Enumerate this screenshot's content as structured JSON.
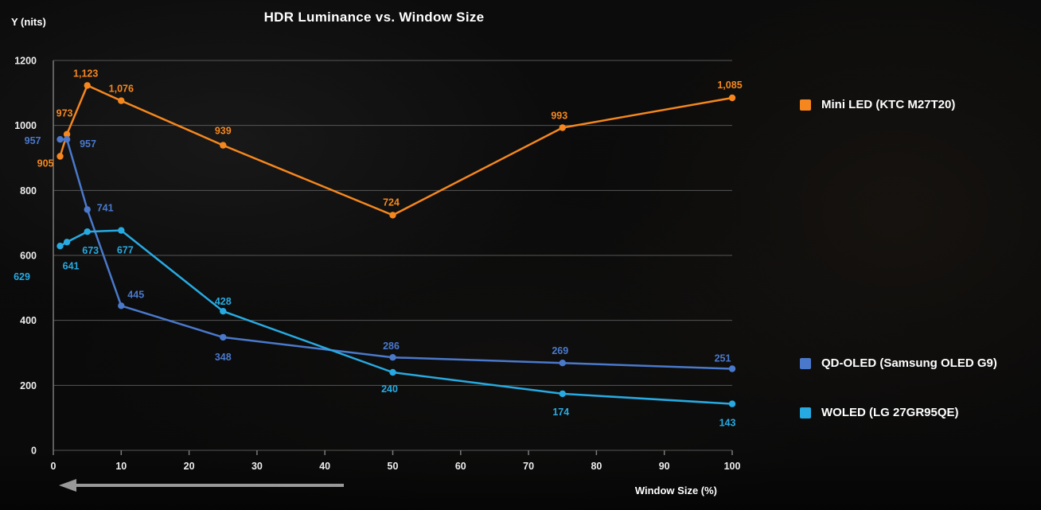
{
  "colors": {
    "background": "#0a0a0a",
    "grid": "#565656",
    "axis": "#7a7a7a",
    "tick_text": "#ededed",
    "title_text": "#ffffff",
    "arrow": "#999999",
    "mini_led_orange": "#f5871e",
    "qd_oled_blue": "#4a79cc",
    "woled_cyan": "#27aae1"
  },
  "chart_data": {
    "type": "line",
    "title": "HDR Luminance vs. Window Size",
    "xlabel": "Window Size (%)",
    "ylabel": "Y (nits)",
    "x": [
      1,
      2,
      5,
      10,
      25,
      50,
      75,
      100
    ],
    "xlim": [
      0,
      100
    ],
    "ylim": [
      0,
      1200
    ],
    "x_ticks": [
      0,
      10,
      20,
      30,
      40,
      50,
      60,
      70,
      80,
      90,
      100
    ],
    "y_ticks": [
      0,
      200,
      400,
      600,
      800,
      1000,
      1200
    ],
    "grid": "horizontal",
    "legend_position": "right",
    "series": [
      {
        "name": "Mini LED (KTC M27T20)",
        "color": "#f5871e",
        "values": [
          905,
          973,
          1123,
          1076,
          939,
          724,
          993,
          1085
        ],
        "point_labels": [
          "905",
          "973",
          "1,123",
          "1,076",
          "939",
          "724",
          "993",
          "1,085"
        ],
        "label_offsets": [
          [
            -8,
            13,
            "end"
          ],
          [
            -3,
            -22,
            "middle"
          ],
          [
            -2,
            -11,
            "middle"
          ],
          [
            0,
            -11,
            "middle"
          ],
          [
            0,
            -14,
            "middle"
          ],
          [
            -2,
            -12,
            "middle"
          ],
          [
            -4,
            -11,
            "middle"
          ],
          [
            -3,
            -12,
            "middle"
          ]
        ]
      },
      {
        "name": "QD-OLED (Samsung OLED G9)",
        "color": "#4a79cc",
        "values": [
          957,
          957,
          741,
          445,
          348,
          286,
          269,
          251
        ],
        "point_labels": [
          "957",
          "957",
          "741",
          "445",
          "348",
          "286",
          "269",
          "251"
        ],
        "label_offsets": [
          [
            -24,
            6,
            "end"
          ],
          [
            16,
            10,
            "start"
          ],
          [
            12,
            2,
            "start"
          ],
          [
            8,
            -10,
            "start"
          ],
          [
            0,
            29,
            "middle"
          ],
          [
            -2,
            -10,
            "middle"
          ],
          [
            -3,
            -11,
            "middle"
          ],
          [
            -12,
            -9,
            "middle"
          ]
        ]
      },
      {
        "name": "WOLED (LG 27GR95QE)",
        "color": "#27aae1",
        "values": [
          629,
          641,
          673,
          677,
          428,
          240,
          174,
          143
        ],
        "point_labels": [
          "629",
          "641",
          "673",
          "677",
          "428",
          "240",
          "174",
          "143"
        ],
        "label_offsets": [
          [
            -48,
            43,
            "middle"
          ],
          [
            5,
            34,
            "middle"
          ],
          [
            4,
            28,
            "middle"
          ],
          [
            5,
            29,
            "middle"
          ],
          [
            0,
            -8,
            "middle"
          ],
          [
            -4,
            25,
            "middle"
          ],
          [
            -2,
            27,
            "middle"
          ],
          [
            -6,
            28,
            "middle"
          ]
        ]
      }
    ]
  }
}
